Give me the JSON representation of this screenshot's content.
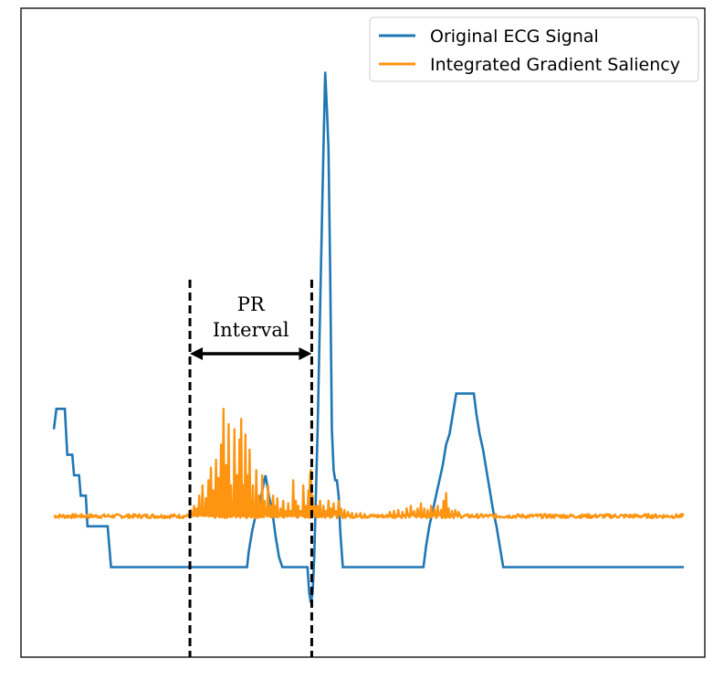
{
  "chart_data": {
    "type": "line",
    "title": "",
    "xlabel": "",
    "ylabel": "",
    "xlim": [
      0,
      750
    ],
    "ylim": [
      -0.08,
      1.06
    ],
    "grid": false,
    "axes_ticks": false,
    "legend": {
      "placement": "top-right",
      "entries": [
        {
          "label": "Original ECG Signal",
          "color": "#1f77b4"
        },
        {
          "label": "Integrated Gradient Saliency",
          "color": "#ff9410"
        }
      ]
    },
    "series": [
      {
        "name": "Original ECG Signal",
        "color": "#1f77b4",
        "step_points": [
          [
            0,
            0.3
          ],
          [
            3,
            0.34
          ],
          [
            13,
            0.34
          ],
          [
            16,
            0.25
          ],
          [
            22,
            0.25
          ],
          [
            24,
            0.21
          ],
          [
            30,
            0.21
          ],
          [
            32,
            0.17
          ],
          [
            38,
            0.17
          ],
          [
            40,
            0.11
          ],
          [
            64,
            0.11
          ],
          [
            68,
            0.03
          ],
          [
            230,
            0.03
          ],
          [
            232,
            0.06
          ],
          [
            236,
            0.1
          ],
          [
            240,
            0.13
          ],
          [
            244,
            0.15
          ],
          [
            248,
            0.18
          ],
          [
            252,
            0.21
          ],
          [
            256,
            0.17
          ],
          [
            260,
            0.14
          ],
          [
            264,
            0.09
          ],
          [
            268,
            0.05
          ],
          [
            272,
            0.03
          ],
          [
            302,
            0.03
          ],
          [
            304,
            -0.02
          ],
          [
            306,
            -0.04
          ],
          [
            308,
            -0.02
          ],
          [
            310,
            0.05
          ],
          [
            314,
            0.3
          ],
          [
            318,
            0.62
          ],
          [
            321,
            0.85
          ],
          [
            323,
            1.0
          ],
          [
            325,
            0.93
          ],
          [
            327,
            0.85
          ],
          [
            329,
            0.6
          ],
          [
            331,
            0.3
          ],
          [
            333,
            0.22
          ],
          [
            335,
            0.2
          ],
          [
            337,
            0.2
          ],
          [
            339,
            0.17
          ],
          [
            341,
            0.1
          ],
          [
            344,
            0.03
          ],
          [
            440,
            0.03
          ],
          [
            443,
            0.07
          ],
          [
            447,
            0.11
          ],
          [
            451,
            0.14
          ],
          [
            455,
            0.17
          ],
          [
            459,
            0.2
          ],
          [
            463,
            0.23
          ],
          [
            467,
            0.27
          ],
          [
            471,
            0.29
          ],
          [
            475,
            0.33
          ],
          [
            479,
            0.37
          ],
          [
            483,
            0.37
          ],
          [
            500,
            0.37
          ],
          [
            503,
            0.33
          ],
          [
            507,
            0.29
          ],
          [
            511,
            0.26
          ],
          [
            515,
            0.22
          ],
          [
            519,
            0.18
          ],
          [
            523,
            0.14
          ],
          [
            527,
            0.11
          ],
          [
            531,
            0.07
          ],
          [
            535,
            0.03
          ],
          [
            750,
            0.03
          ]
        ]
      },
      {
        "name": "Integrated Gradient Saliency",
        "color": "#ff9410",
        "baseline": 0.13,
        "noise_amplitude": 0.004,
        "spikes": [
          [
            163,
            0.012
          ],
          [
            167,
            0.02
          ],
          [
            170,
            0.015
          ],
          [
            173,
            0.04
          ],
          [
            177,
            0.06
          ],
          [
            181,
            0.035
          ],
          [
            184,
            0.07
          ],
          [
            187,
            0.095
          ],
          [
            190,
            0.05
          ],
          [
            193,
            0.11
          ],
          [
            196,
            0.075
          ],
          [
            199,
            0.14
          ],
          [
            202,
            0.21
          ],
          [
            205,
            0.1
          ],
          [
            208,
            0.18
          ],
          [
            211,
            0.06
          ],
          [
            215,
            0.17
          ],
          [
            218,
            0.08
          ],
          [
            221,
            0.15
          ],
          [
            223,
            0.19
          ],
          [
            225,
            0.06
          ],
          [
            228,
            0.16
          ],
          [
            231,
            0.08
          ],
          [
            233,
            0.13
          ],
          [
            237,
            0.06
          ],
          [
            241,
            0.09
          ],
          [
            244,
            0.04
          ],
          [
            248,
            0.08
          ],
          [
            251,
            0.03
          ],
          [
            255,
            0.06
          ],
          [
            258,
            0.02
          ],
          [
            261,
            0.04
          ],
          [
            263,
            0.02
          ],
          [
            266,
            0.035
          ],
          [
            270,
            0.015
          ],
          [
            273,
            0.03
          ],
          [
            276,
            0.01
          ],
          [
            279,
            0.025
          ],
          [
            282,
            0.01
          ],
          [
            285,
            0.07
          ],
          [
            288,
            0.03
          ],
          [
            291,
            0.02
          ],
          [
            294,
            0.01
          ],
          [
            297,
            0.06
          ],
          [
            300,
            0.02
          ],
          [
            303,
            0.05
          ],
          [
            305,
            0.08
          ],
          [
            306,
            0.09
          ],
          [
            308,
            0.04
          ],
          [
            311,
            0.02
          ],
          [
            314,
            0.02
          ],
          [
            317,
            0.03
          ],
          [
            321,
            0.02
          ],
          [
            324,
            0.01
          ],
          [
            327,
            0.03
          ],
          [
            330,
            0.015
          ],
          [
            333,
            0.025
          ],
          [
            336,
            0.01
          ],
          [
            339,
            0.03
          ],
          [
            342,
            0.015
          ],
          [
            346,
            0.012
          ],
          [
            350,
            0.008
          ],
          [
            355,
            0.006
          ],
          [
            360,
            0.005
          ],
          [
            365,
            0.006
          ],
          [
            370,
            0.004
          ],
          [
            400,
            0.008
          ],
          [
            405,
            0.01
          ],
          [
            410,
            0.012
          ],
          [
            415,
            0.008
          ],
          [
            420,
            0.015
          ],
          [
            425,
            0.02
          ],
          [
            429,
            0.01
          ],
          [
            433,
            0.015
          ],
          [
            437,
            0.025
          ],
          [
            441,
            0.015
          ],
          [
            445,
            0.012
          ],
          [
            449,
            0.02
          ],
          [
            453,
            0.015
          ],
          [
            457,
            0.02
          ],
          [
            461,
            0.012
          ],
          [
            464,
            0.03
          ],
          [
            467,
            0.045
          ],
          [
            470,
            0.015
          ],
          [
            474,
            0.01
          ],
          [
            478,
            0.012
          ],
          [
            482,
            0.008
          ]
        ]
      }
    ],
    "annotations": [
      {
        "type": "vertical-dashed-lines",
        "x": [
          162,
          307
        ],
        "color": "#000000"
      },
      {
        "type": "double-arrow",
        "x_start": 162,
        "x_end": 307,
        "y": 0.6,
        "label_lines": [
          "PR",
          "Interval"
        ]
      }
    ]
  }
}
